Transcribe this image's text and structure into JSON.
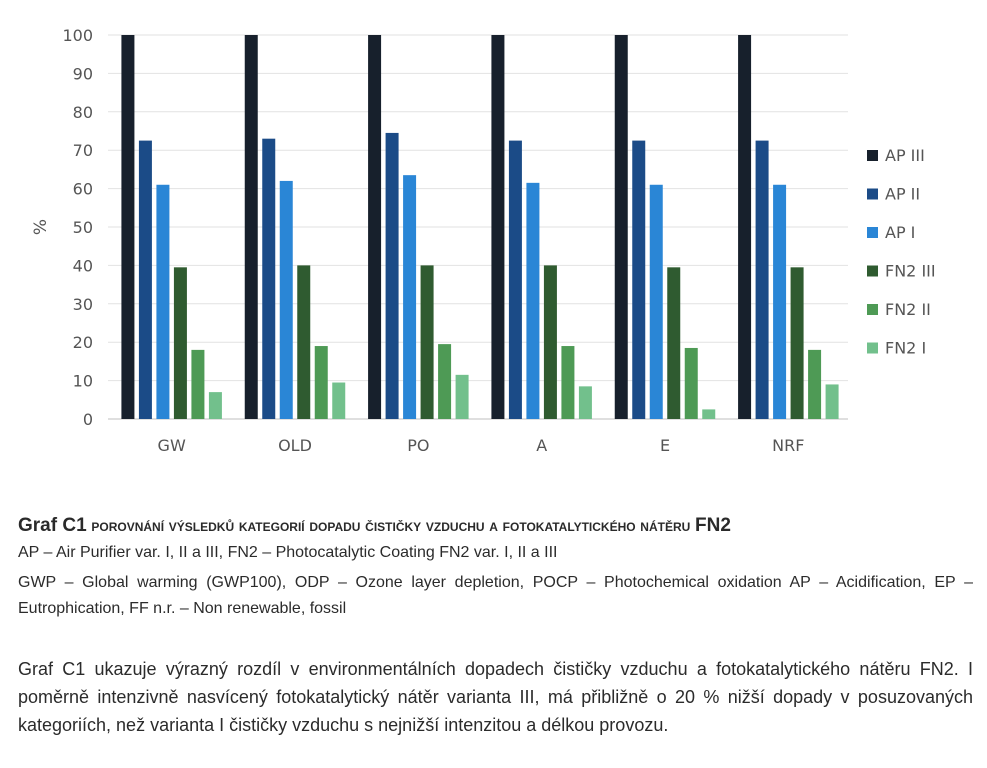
{
  "chart_data": {
    "type": "bar",
    "ylabel": "%",
    "xlabel": "",
    "ylim": [
      0,
      100
    ],
    "yticks": [
      0,
      10,
      20,
      30,
      40,
      50,
      60,
      70,
      80,
      90,
      100
    ],
    "grid": true,
    "legend_position": "right",
    "categories": [
      "GW",
      "OLD",
      "PO",
      "A",
      "E",
      "NRF"
    ],
    "series": [
      {
        "name": "AP III",
        "color": "#17202c",
        "values": [
          100,
          100,
          100,
          100,
          100,
          100
        ]
      },
      {
        "name": "AP II",
        "color": "#1b4b87",
        "values": [
          72.5,
          73,
          74.5,
          72.5,
          72.5,
          72.5
        ]
      },
      {
        "name": "AP I",
        "color": "#2a86d6",
        "values": [
          61,
          62,
          63.5,
          61.5,
          61,
          61
        ]
      },
      {
        "name": "FN2 III",
        "color": "#2f5b30",
        "values": [
          39.5,
          40,
          40,
          40,
          39.5,
          39.5
        ]
      },
      {
        "name": "FN2 II",
        "color": "#4e9a55",
        "values": [
          18,
          19,
          19.5,
          19,
          18.5,
          18
        ]
      },
      {
        "name": "FN2 I",
        "color": "#72c08c",
        "values": [
          7,
          9.5,
          11.5,
          8.5,
          2.5,
          9
        ]
      }
    ]
  },
  "caption": {
    "graf_label": "Graf C1",
    "title": "porovnání výsledků kategorií dopadu čističky vzduchu a fotokatalytického nátěru",
    "title_end": "FN2",
    "abbreviations_1": "AP – Air Purifier var. I, II a III, FN2 – Photocatalytic Coating FN2 var. I, II a III",
    "abbreviations_2": "GWP – Global warming (GWP100), ODP – Ozone layer depletion, POCP – Photochemical oxidation AP – Acidification, EP – Eutrophication, FF n.r. – Non renewable, fossil"
  },
  "body_text": "Graf C1 ukazuje výrazný rozdíl v environmentálních dopadech čističky vzduchu a fotokatalytického nátěru FN2. I poměrně intenzivně nasvícený fotokatalytický nátěr varianta III, má přibližně o 20 % nižší dopady v posuzovaných kategoriích, než varianta I čističky vzduchu s nejnižší intenzitou a délkou provozu."
}
